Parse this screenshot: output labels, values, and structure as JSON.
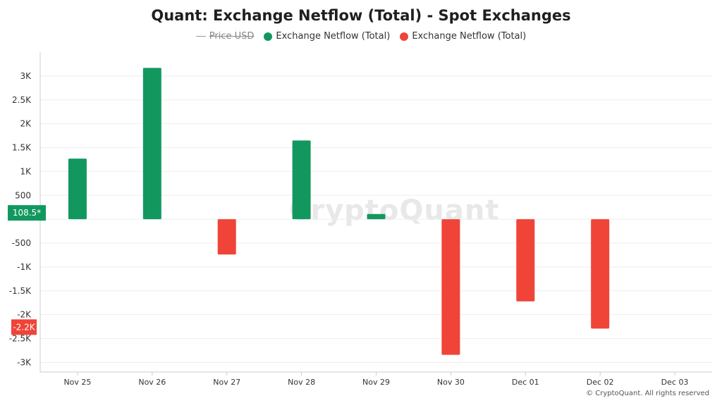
{
  "chart_data": {
    "type": "bar",
    "title": "Quant: Exchange Netflow (Total) - Spot Exchanges",
    "categories": [
      "Nov 25",
      "Nov 26",
      "Nov 27",
      "Nov 28",
      "Nov 29",
      "Nov 30",
      "Dec 01",
      "Dec 02",
      "Dec 03"
    ],
    "series": [
      {
        "name": "Exchange Netflow (Total)",
        "values": [
          1270,
          3170,
          -740,
          1650,
          108.5,
          -2840,
          -1720,
          -2290,
          null
        ]
      }
    ],
    "ylim": [
      -3200,
      3500
    ],
    "yticks": [
      3000,
      2500,
      2000,
      1500,
      1000,
      500,
      0,
      -500,
      -1000,
      -1500,
      -2000,
      -2500,
      -3000
    ],
    "ytick_labels": [
      "3K",
      "2.5K",
      "2K",
      "1.5K",
      "1K",
      "500",
      "",
      "-500",
      "-1K",
      "-1.5K",
      "-2K",
      "-2.5K",
      "-3K"
    ],
    "grid": true,
    "legend": {
      "placement": "top-center",
      "items": [
        {
          "label": "Price USD",
          "type": "line",
          "hidden": true
        },
        {
          "label": "Exchange Netflow (Total)",
          "type": "dot",
          "color": "#12985f"
        },
        {
          "label": "Exchange Netflow (Total)",
          "type": "dot",
          "color": "#f04438"
        }
      ]
    },
    "current_value_badges": [
      {
        "label": "108.5*",
        "value": 0,
        "color": "#12985f"
      },
      {
        "label": "-2.2K",
        "value": -2260,
        "color": "#f04438"
      }
    ],
    "colors": {
      "positive": "#12985f",
      "negative": "#f04438"
    }
  },
  "watermark": "CryptoQuant",
  "copyright": "© CryptoQuant. All rights reserved"
}
